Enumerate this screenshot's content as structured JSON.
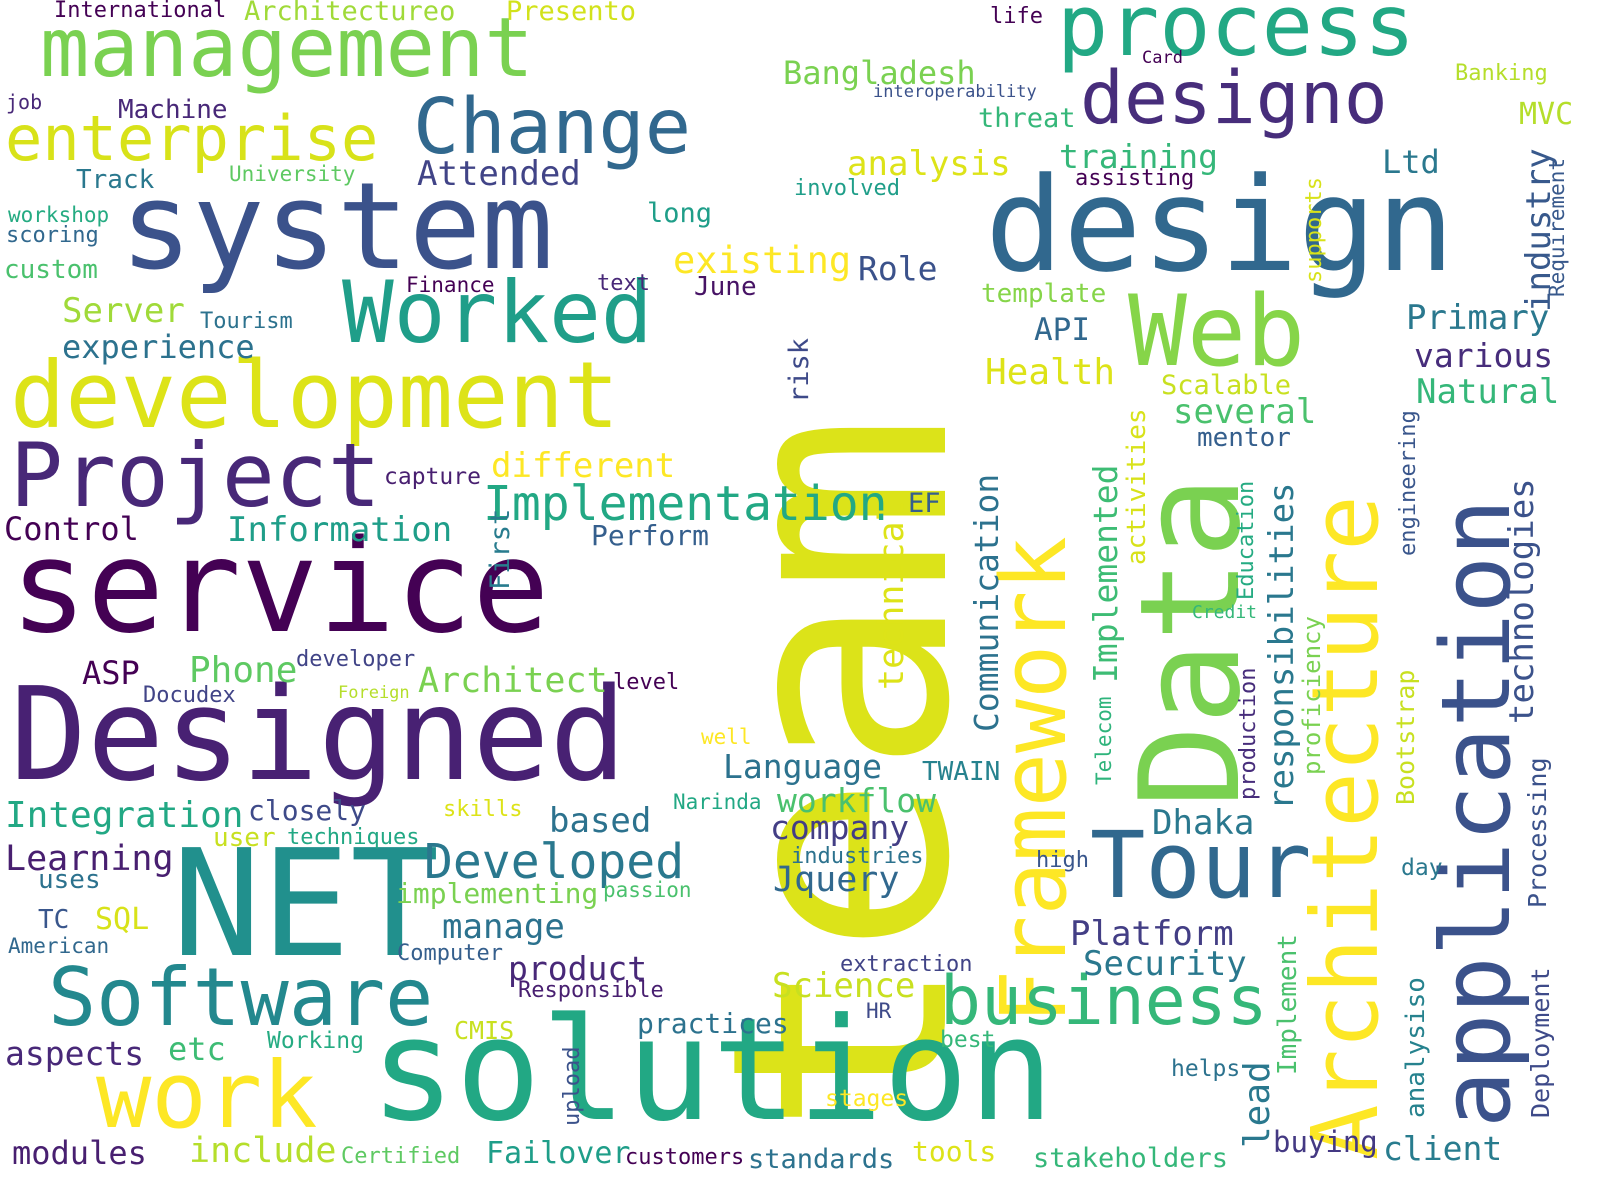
{
  "words": [
    {
      "text": "team",
      "color": "#dce319"
    },
    {
      "text": "service",
      "color": "#440154"
    },
    {
      "text": "Designed",
      "color": "#482173"
    },
    {
      "text": "NET",
      "color": "#21908d"
    },
    {
      "text": "solution",
      "color": "#22a884"
    },
    {
      "text": "system",
      "color": "#3b528b"
    },
    {
      "text": "design",
      "color": "#31688e"
    },
    {
      "text": "development",
      "color": "#dde318"
    },
    {
      "text": "management",
      "color": "#7ad151"
    },
    {
      "text": "process",
      "color": "#22a884"
    },
    {
      "text": "Project",
      "color": "#482878"
    },
    {
      "text": "Change",
      "color": "#31688e"
    },
    {
      "text": "designo",
      "color": "#472d7b"
    },
    {
      "text": "Data",
      "color": "#7ad151"
    },
    {
      "text": "application",
      "color": "#3b528b"
    },
    {
      "text": "Architecture",
      "color": "#fde725"
    },
    {
      "text": "Framework",
      "color": "#fde725"
    },
    {
      "text": "Web",
      "color": "#86d549"
    },
    {
      "text": "Worked",
      "color": "#1f9e89"
    },
    {
      "text": "Tour",
      "color": "#31688e"
    },
    {
      "text": "Software",
      "color": "#23888e"
    },
    {
      "text": "business",
      "color": "#35b779"
    },
    {
      "text": "work",
      "color": "#fde725"
    },
    {
      "text": "enterprise",
      "color": "#d8e219"
    },
    {
      "text": "Implementation",
      "color": "#22a884"
    },
    {
      "text": "Developed",
      "color": "#2a788e"
    },
    {
      "text": "International",
      "color": "#440154"
    },
    {
      "text": "Architectureo",
      "color": "#a0da39"
    },
    {
      "text": "Presento",
      "color": "#d2e21b"
    },
    {
      "text": "life",
      "color": "#440154"
    },
    {
      "text": "Card",
      "color": "#440154"
    },
    {
      "text": "Banking",
      "color": "#b5de2b"
    },
    {
      "text": "job",
      "color": "#482878"
    },
    {
      "text": "Machine",
      "color": "#482878"
    },
    {
      "text": "Bangladesh",
      "color": "#7ad151"
    },
    {
      "text": "interoperability",
      "color": "#3b528b"
    },
    {
      "text": "MVC",
      "color": "#b5de2b"
    },
    {
      "text": "threat",
      "color": "#35b779"
    },
    {
      "text": "training",
      "color": "#35b779"
    },
    {
      "text": "Ltd",
      "color": "#2a788e"
    },
    {
      "text": "analysis",
      "color": "#dde318"
    },
    {
      "text": "Attended",
      "color": "#414487"
    },
    {
      "text": "University",
      "color": "#5ec962"
    },
    {
      "text": "involved",
      "color": "#1f9e89"
    },
    {
      "text": "assisting",
      "color": "#440154"
    },
    {
      "text": "Track",
      "color": "#2a788e"
    },
    {
      "text": "workshop",
      "color": "#25ab82"
    },
    {
      "text": "scoring",
      "color": "#31688e"
    },
    {
      "text": "long",
      "color": "#1f9e89"
    },
    {
      "text": "custom",
      "color": "#4ac16d"
    },
    {
      "text": "existing",
      "color": "#fde725"
    },
    {
      "text": "Role",
      "color": "#3b528b"
    },
    {
      "text": "Finance",
      "color": "#440154"
    },
    {
      "text": "text",
      "color": "#482878"
    },
    {
      "text": "June",
      "color": "#471365"
    },
    {
      "text": "template",
      "color": "#86d549"
    },
    {
      "text": "Server",
      "color": "#a0da39"
    },
    {
      "text": "Tourism",
      "color": "#2c728e"
    },
    {
      "text": "API",
      "color": "#31688e"
    },
    {
      "text": "Primary",
      "color": "#2a788e"
    },
    {
      "text": "experience",
      "color": "#2c728e"
    },
    {
      "text": "various",
      "color": "#472d7b"
    },
    {
      "text": "Health",
      "color": "#dde318"
    },
    {
      "text": "Scalable",
      "color": "#c8e020"
    },
    {
      "text": "Natural",
      "color": "#35b779"
    },
    {
      "text": "several",
      "color": "#4ac16d"
    },
    {
      "text": "mentor",
      "color": "#355f8d"
    },
    {
      "text": "different",
      "color": "#fde725"
    },
    {
      "text": "capture",
      "color": "#481f70"
    },
    {
      "text": "EF",
      "color": "#355f8d"
    },
    {
      "text": "Control",
      "color": "#440154"
    },
    {
      "text": "Information",
      "color": "#1f9e89"
    },
    {
      "text": "Perform",
      "color": "#355f8d"
    },
    {
      "text": "ASP",
      "color": "#440154"
    },
    {
      "text": "Phone",
      "color": "#5ec962"
    },
    {
      "text": "developer",
      "color": "#414487"
    },
    {
      "text": "Docudex",
      "color": "#414487"
    },
    {
      "text": "Foreign",
      "color": "#b5de2b"
    },
    {
      "text": "Architect",
      "color": "#7ad151"
    },
    {
      "text": "level",
      "color": "#440154"
    },
    {
      "text": "well",
      "color": "#fde725"
    },
    {
      "text": "Language",
      "color": "#2c728e"
    },
    {
      "text": "TWAIN",
      "color": "#26828e"
    },
    {
      "text": "Integration",
      "color": "#22a884"
    },
    {
      "text": "closely",
      "color": "#3e4a89"
    },
    {
      "text": "skills",
      "color": "#dde318"
    },
    {
      "text": "Narinda",
      "color": "#22a884"
    },
    {
      "text": "workflow",
      "color": "#4ac16d"
    },
    {
      "text": "based",
      "color": "#2c728e"
    },
    {
      "text": "Dhaka",
      "color": "#2a788e"
    },
    {
      "text": "user",
      "color": "#c8e020"
    },
    {
      "text": "techniques",
      "color": "#22a884"
    },
    {
      "text": "company",
      "color": "#433e85"
    },
    {
      "text": "Learning",
      "color": "#481f70"
    },
    {
      "text": "industries",
      "color": "#2c728e"
    },
    {
      "text": "high",
      "color": "#39568c"
    },
    {
      "text": "day",
      "color": "#2a788e"
    },
    {
      "text": "uses",
      "color": "#2c728e"
    },
    {
      "text": "Jquery",
      "color": "#31688e"
    },
    {
      "text": "implementing",
      "color": "#7ad151"
    },
    {
      "text": "passion",
      "color": "#4ac16d"
    },
    {
      "text": "TC",
      "color": "#39568c"
    },
    {
      "text": "SQL",
      "color": "#d8e219"
    },
    {
      "text": "manage",
      "color": "#2c728e"
    },
    {
      "text": "Platform",
      "color": "#433e85"
    },
    {
      "text": "American",
      "color": "#31688e"
    },
    {
      "text": "Computer",
      "color": "#355f8d"
    },
    {
      "text": "product",
      "color": "#482878"
    },
    {
      "text": "Security",
      "color": "#2a788e"
    },
    {
      "text": "extraction",
      "color": "#414487"
    },
    {
      "text": "Science",
      "color": "#c8e020"
    },
    {
      "text": "Responsible",
      "color": "#481f70"
    },
    {
      "text": "CMIS",
      "color": "#c8e020"
    },
    {
      "text": "HR",
      "color": "#3e4a89"
    },
    {
      "text": "practices",
      "color": "#2c728e"
    },
    {
      "text": "aspects",
      "color": "#482878"
    },
    {
      "text": "etc",
      "color": "#3dbc74"
    },
    {
      "text": "Working",
      "color": "#25ab82"
    },
    {
      "text": "best",
      "color": "#35b779"
    },
    {
      "text": "helps",
      "color": "#2c728e"
    },
    {
      "text": "stages",
      "color": "#fde725"
    },
    {
      "text": "modules",
      "color": "#481f70"
    },
    {
      "text": "include",
      "color": "#b5de2b"
    },
    {
      "text": "Certified",
      "color": "#5ec962"
    },
    {
      "text": "Failover",
      "color": "#1f9e89"
    },
    {
      "text": "customers",
      "color": "#440154"
    },
    {
      "text": "standards",
      "color": "#2c728e"
    },
    {
      "text": "tools",
      "color": "#dde318"
    },
    {
      "text": "stakeholders",
      "color": "#35b779"
    },
    {
      "text": "buying",
      "color": "#443983"
    },
    {
      "text": "client",
      "color": "#287c8e"
    },
    {
      "text": "industry",
      "color": "#38598c"
    },
    {
      "text": "Requirement",
      "color": "#38598c"
    },
    {
      "text": "supports",
      "color": "#d8e219"
    },
    {
      "text": "risk",
      "color": "#3e4a89"
    },
    {
      "text": "activities",
      "color": "#d8e219"
    },
    {
      "text": "Implemented",
      "color": "#3dbc74"
    },
    {
      "text": "technical",
      "color": "#dde318"
    },
    {
      "text": "Communication",
      "color": "#2c728e"
    },
    {
      "text": "responsibilities",
      "color": "#2a788e"
    },
    {
      "text": "Education",
      "color": "#25ab82"
    },
    {
      "text": "technologies",
      "color": "#3b528b"
    },
    {
      "text": "engineering",
      "color": "#39568c"
    },
    {
      "text": "First",
      "color": "#287c8e"
    },
    {
      "text": "Credit",
      "color": "#35b779"
    },
    {
      "text": "Telecom",
      "color": "#2fb47c"
    },
    {
      "text": "production",
      "color": "#472d7b"
    },
    {
      "text": "proficiency",
      "color": "#7ad151"
    },
    {
      "text": "Bootstrap",
      "color": "#c8e020"
    },
    {
      "text": "Processing",
      "color": "#3b528b"
    },
    {
      "text": "Implement",
      "color": "#4ac16d"
    },
    {
      "text": "analysiso",
      "color": "#26828e"
    },
    {
      "text": "Deployment",
      "color": "#3e4a89"
    },
    {
      "text": "lead",
      "color": "#2a788e"
    },
    {
      "text": "upload",
      "color": "#3b528b"
    }
  ]
}
